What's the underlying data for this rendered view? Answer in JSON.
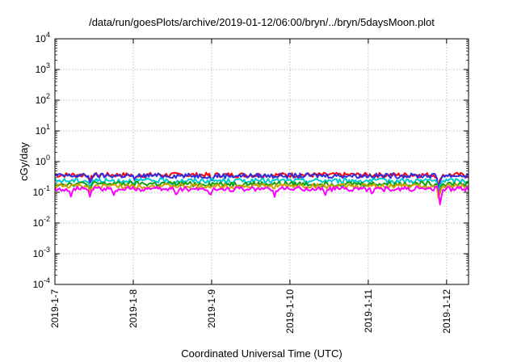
{
  "chart_data": {
    "type": "line",
    "title": "/data/run/goesPlots/archive/2019-01-12/06:00/bryn/../bryn/5daysMoon.plot",
    "xlabel": "Coordinated Universal Time (UTC)",
    "ylabel": "cGy/day",
    "y_scale": "log",
    "ylim": [
      0.0001,
      10000
    ],
    "xlim_days": [
      0,
      5.28
    ],
    "grid": true,
    "legend": "none",
    "y_ticks": [
      {
        "base": "10",
        "exp": "-4",
        "value": 0.0001
      },
      {
        "base": "10",
        "exp": "-3",
        "value": 0.001
      },
      {
        "base": "10",
        "exp": "-2",
        "value": 0.01
      },
      {
        "base": "10",
        "exp": "-1",
        "value": 0.1
      },
      {
        "base": "10",
        "exp": "0",
        "value": 1
      },
      {
        "base": "10",
        "exp": "1",
        "value": 10
      },
      {
        "base": "10",
        "exp": "2",
        "value": 100
      },
      {
        "base": "10",
        "exp": "3",
        "value": 1000
      },
      {
        "base": "10",
        "exp": "4",
        "value": 10000
      }
    ],
    "x_ticks": [
      {
        "label": "2019-1-7",
        "day": 0
      },
      {
        "label": "2019-1-8",
        "day": 1
      },
      {
        "label": "2019-1-9",
        "day": 2
      },
      {
        "label": "2019-1-10",
        "day": 3
      },
      {
        "label": "2019-1-11",
        "day": 4
      },
      {
        "label": "2019-1-12",
        "day": 5
      }
    ],
    "series": [
      {
        "color": "#ff0000",
        "base": 0.37,
        "dips": [
          {
            "day": 0.45,
            "value": 0.22
          },
          {
            "day": 1.02,
            "value": 0.25
          },
          {
            "day": 2.0,
            "value": 0.24
          },
          {
            "day": 4.9,
            "value": 0.12
          }
        ]
      },
      {
        "color": "#3030e0",
        "base": 0.35,
        "dips": [
          {
            "day": 0.45,
            "value": 0.2
          },
          {
            "day": 1.02,
            "value": 0.24
          },
          {
            "day": 2.0,
            "value": 0.22
          },
          {
            "day": 4.9,
            "value": 0.1
          }
        ]
      },
      {
        "color": "#00c8d0",
        "base": 0.24,
        "dips": [
          {
            "day": 0.45,
            "value": 0.14
          },
          {
            "day": 1.5,
            "value": 0.15
          },
          {
            "day": 4.9,
            "value": 0.07
          }
        ]
      },
      {
        "color": "#10a010",
        "base": 0.19,
        "dips": [
          {
            "day": 0.45,
            "value": 0.11
          },
          {
            "day": 4.9,
            "value": 0.06
          }
        ]
      },
      {
        "color": "#d0a000",
        "base": 0.16,
        "dips": [
          {
            "day": 0.45,
            "value": 0.1
          },
          {
            "day": 4.9,
            "value": 0.05
          }
        ]
      },
      {
        "color": "#ff00ff",
        "base": 0.13,
        "dips": [
          {
            "day": 0.2,
            "value": 0.07
          },
          {
            "day": 0.45,
            "value": 0.07
          },
          {
            "day": 0.75,
            "value": 0.08
          },
          {
            "day": 1.55,
            "value": 0.08
          },
          {
            "day": 1.98,
            "value": 0.07
          },
          {
            "day": 2.8,
            "value": 0.07
          },
          {
            "day": 3.45,
            "value": 0.08
          },
          {
            "day": 4.05,
            "value": 0.08
          },
          {
            "day": 4.92,
            "value": 0.03
          }
        ]
      }
    ]
  }
}
